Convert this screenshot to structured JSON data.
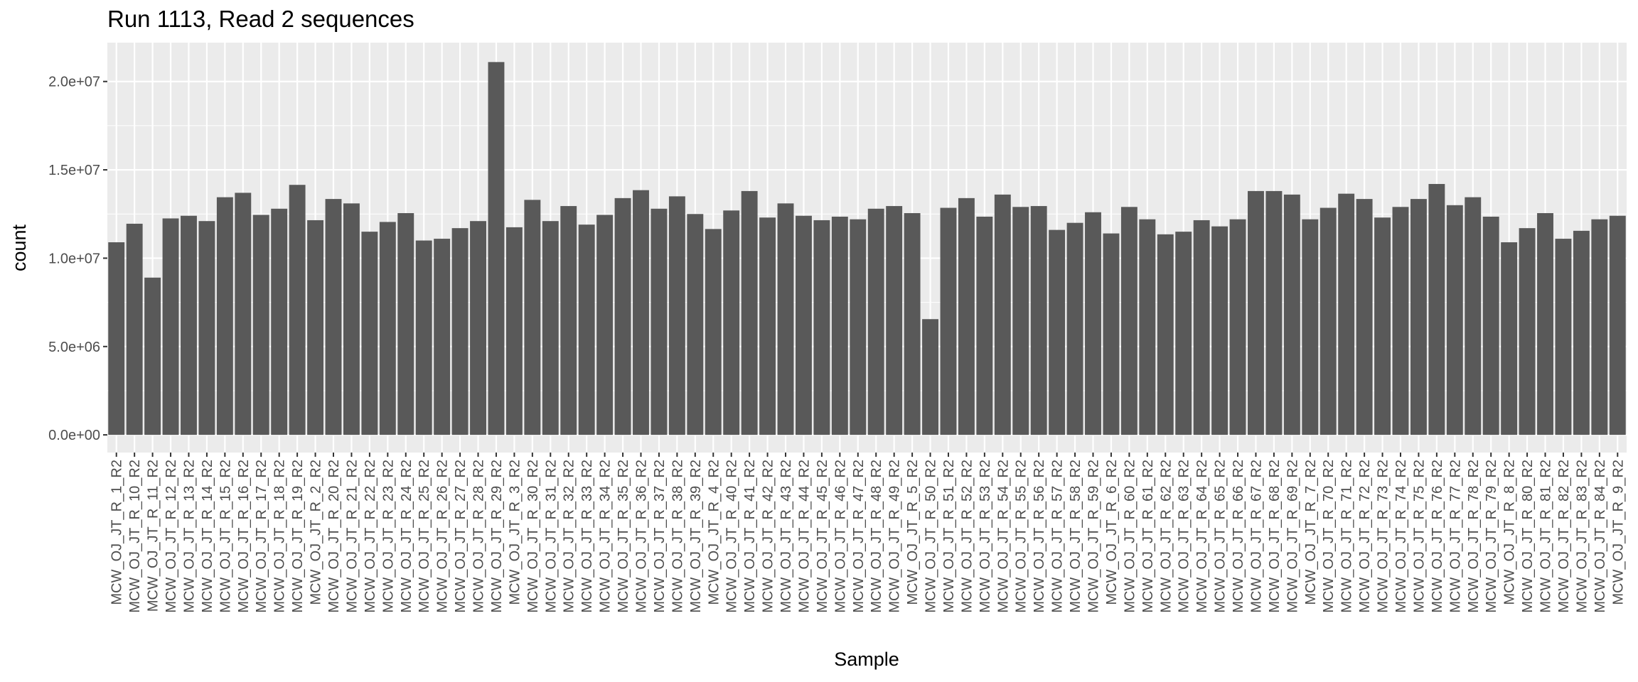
{
  "title": "Run 1113, Read 2 sequences",
  "chart_data": {
    "type": "bar",
    "title": "Run 1113, Read 2 sequences",
    "xlabel": "Sample",
    "ylabel": "count",
    "ylim": [
      -1000000,
      22200000
    ],
    "yticks": [
      0,
      5000000,
      10000000,
      15000000,
      20000000
    ],
    "ytick_labels": [
      "0.0e+00",
      "5.0e+06",
      "1.0e+07",
      "1.5e+07",
      "2.0e+07"
    ],
    "grid": true,
    "bar_color": "#595959",
    "panel_color": "#ebebeb",
    "categories": [
      "MCW_OJ_JT_R_1_R2",
      "MCW_OJ_JT_R_10_R2",
      "MCW_OJ_JT_R_11_R2",
      "MCW_OJ_JT_R_12_R2",
      "MCW_OJ_JT_R_13_R2",
      "MCW_OJ_JT_R_14_R2",
      "MCW_OJ_JT_R_15_R2",
      "MCW_OJ_JT_R_16_R2",
      "MCW_OJ_JT_R_17_R2",
      "MCW_OJ_JT_R_18_R2",
      "MCW_OJ_JT_R_19_R2",
      "MCW_OJ_JT_R_2_R2",
      "MCW_OJ_JT_R_20_R2",
      "MCW_OJ_JT_R_21_R2",
      "MCW_OJ_JT_R_22_R2",
      "MCW_OJ_JT_R_23_R2",
      "MCW_OJ_JT_R_24_R2",
      "MCW_OJ_JT_R_25_R2",
      "MCW_OJ_JT_R_26_R2",
      "MCW_OJ_JT_R_27_R2",
      "MCW_OJ_JT_R_28_R2",
      "MCW_OJ_JT_R_29_R2",
      "MCW_OJ_JT_R_3_R2",
      "MCW_OJ_JT_R_30_R2",
      "MCW_OJ_JT_R_31_R2",
      "MCW_OJ_JT_R_32_R2",
      "MCW_OJ_JT_R_33_R2",
      "MCW_OJ_JT_R_34_R2",
      "MCW_OJ_JT_R_35_R2",
      "MCW_OJ_JT_R_36_R2",
      "MCW_OJ_JT_R_37_R2",
      "MCW_OJ_JT_R_38_R2",
      "MCW_OJ_JT_R_39_R2",
      "MCW_OJ_JT_R_4_R2",
      "MCW_OJ_JT_R_40_R2",
      "MCW_OJ_JT_R_41_R2",
      "MCW_OJ_JT_R_42_R2",
      "MCW_OJ_JT_R_43_R2",
      "MCW_OJ_JT_R_44_R2",
      "MCW_OJ_JT_R_45_R2",
      "MCW_OJ_JT_R_46_R2",
      "MCW_OJ_JT_R_47_R2",
      "MCW_OJ_JT_R_48_R2",
      "MCW_OJ_JT_R_49_R2",
      "MCW_OJ_JT_R_5_R2",
      "MCW_OJ_JT_R_50_R2",
      "MCW_OJ_JT_R_51_R2",
      "MCW_OJ_JT_R_52_R2",
      "MCW_OJ_JT_R_53_R2",
      "MCW_OJ_JT_R_54_R2",
      "MCW_OJ_JT_R_55_R2",
      "MCW_OJ_JT_R_56_R2",
      "MCW_OJ_JT_R_57_R2",
      "MCW_OJ_JT_R_58_R2",
      "MCW_OJ_JT_R_59_R2",
      "MCW_OJ_JT_R_6_R2",
      "MCW_OJ_JT_R_60_R2",
      "MCW_OJ_JT_R_61_R2",
      "MCW_OJ_JT_R_62_R2",
      "MCW_OJ_JT_R_63_R2",
      "MCW_OJ_JT_R_64_R2",
      "MCW_OJ_JT_R_65_R2",
      "MCW_OJ_JT_R_66_R2",
      "MCW_OJ_JT_R_67_R2",
      "MCW_OJ_JT_R_68_R2",
      "MCW_OJ_JT_R_69_R2",
      "MCW_OJ_JT_R_7_R2",
      "MCW_OJ_JT_R_70_R2",
      "MCW_OJ_JT_R_71_R2",
      "MCW_OJ_JT_R_72_R2",
      "MCW_OJ_JT_R_73_R2",
      "MCW_OJ_JT_R_74_R2",
      "MCW_OJ_JT_R_75_R2",
      "MCW_OJ_JT_R_76_R2",
      "MCW_OJ_JT_R_77_R2",
      "MCW_OJ_JT_R_78_R2",
      "MCW_OJ_JT_R_79_R2",
      "MCW_OJ_JT_R_8_R2",
      "MCW_OJ_JT_R_80_R2",
      "MCW_OJ_JT_R_81_R2",
      "MCW_OJ_JT_R_82_R2",
      "MCW_OJ_JT_R_83_R2",
      "MCW_OJ_JT_R_84_R2",
      "MCW_OJ_JT_R_9_R2"
    ],
    "values": [
      10900000,
      11950000,
      8900000,
      12250000,
      12400000,
      12100000,
      13450000,
      13700000,
      12450000,
      12800000,
      14150000,
      12150000,
      13350000,
      13100000,
      11500000,
      12050000,
      12550000,
      11000000,
      11100000,
      11700000,
      12100000,
      21100000,
      11750000,
      13300000,
      12100000,
      12950000,
      11900000,
      12450000,
      13400000,
      13850000,
      12800000,
      13500000,
      12500000,
      11650000,
      12700000,
      13800000,
      12300000,
      13100000,
      12400000,
      12150000,
      12350000,
      12200000,
      12800000,
      12950000,
      12550000,
      6550000,
      12850000,
      13400000,
      12350000,
      13600000,
      12900000,
      12950000,
      11600000,
      12000000,
      12600000,
      11400000,
      12900000,
      12200000,
      11350000,
      11500000,
      12150000,
      11800000,
      12200000,
      13800000,
      13800000,
      13600000,
      12200000,
      12850000,
      13650000,
      13350000,
      12300000,
      12900000,
      13350000,
      14200000,
      13000000,
      13450000,
      12350000,
      10900000,
      11700000,
      12550000,
      11100000,
      11550000,
      12200000,
      12400000
    ]
  }
}
